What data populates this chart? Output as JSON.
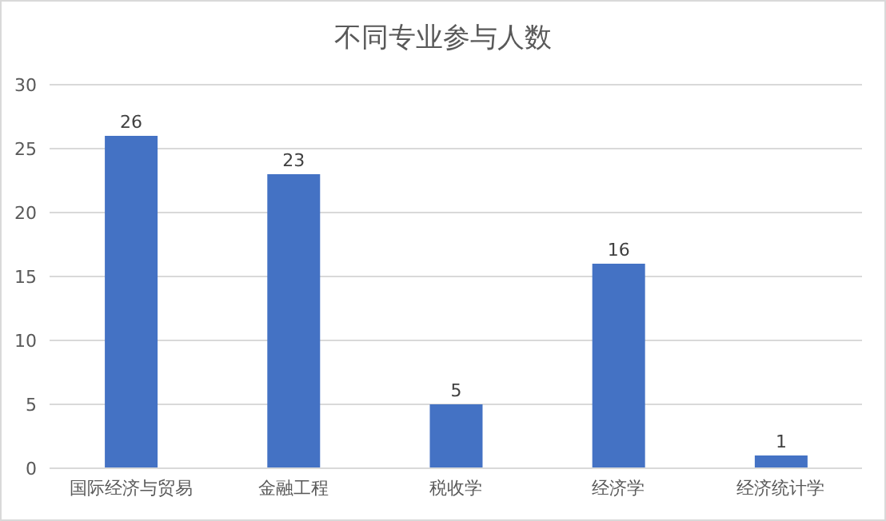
{
  "chart_data": {
    "type": "bar",
    "title": "不同专业参与人数",
    "categories": [
      "国际经济与贸易",
      "金融工程",
      "税收学",
      "经济学",
      "经济统计学"
    ],
    "values": [
      26,
      23,
      5,
      16,
      1
    ],
    "color": "#4472c4",
    "ylim": [
      0,
      30
    ],
    "yticks": [
      0,
      5,
      10,
      15,
      20,
      25,
      30
    ],
    "grid": "y",
    "data_labels": true
  }
}
